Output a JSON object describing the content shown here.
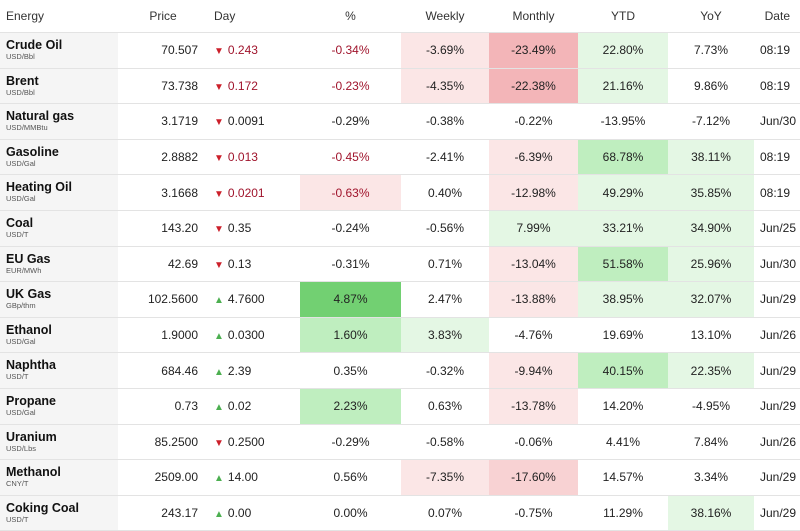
{
  "header": {
    "energy": "Energy",
    "price": "Price",
    "day": "Day",
    "pct": "%",
    "weekly": "Weekly",
    "monthly": "Monthly",
    "ytd": "YTD",
    "yoy": "YoY",
    "date": "Date"
  },
  "colors": {
    "red_strong": "#f3b5b8",
    "red_mid": "#f8d2d3",
    "red_light": "#fbe6e6",
    "green_strong": "#72d072",
    "green_mid": "#bfeebf",
    "green_light": "#e4f7e4",
    "down_text": "#a0142c",
    "down_arrow": "#cc1f2a",
    "up_arrow": "#4caf50"
  },
  "rows": [
    {
      "name": "Crude Oil",
      "unit": "USD/Bbl",
      "price": "70.507",
      "dir": "down",
      "day": "0.243",
      "pct": "-0.34%",
      "weekly": "-3.69%",
      "monthly": "-23.49%",
      "ytd": "22.80%",
      "yoy": "7.73%",
      "date": "08:19",
      "bg": {
        "pct": "",
        "weekly": "#fbe6e6",
        "monthly": "#f3b5b8",
        "ytd": "#e4f7e4",
        "yoy": ""
      },
      "red": {
        "day": true,
        "pct": true
      }
    },
    {
      "name": "Brent",
      "unit": "USD/Bbl",
      "price": "73.738",
      "dir": "down",
      "day": "0.172",
      "pct": "-0.23%",
      "weekly": "-4.35%",
      "monthly": "-22.38%",
      "ytd": "21.16%",
      "yoy": "9.86%",
      "date": "08:19",
      "bg": {
        "pct": "",
        "weekly": "#fbe6e6",
        "monthly": "#f3b5b8",
        "ytd": "#e4f7e4",
        "yoy": ""
      },
      "red": {
        "day": true,
        "pct": true
      }
    },
    {
      "name": "Natural gas",
      "unit": "USD/MMBtu",
      "price": "3.1719",
      "dir": "down",
      "day": "0.0091",
      "pct": "-0.29%",
      "weekly": "-0.38%",
      "monthly": "-0.22%",
      "ytd": "-13.95%",
      "yoy": "-7.12%",
      "date": "Jun/30",
      "bg": {
        "pct": "",
        "weekly": "",
        "monthly": "",
        "ytd": "",
        "yoy": ""
      },
      "red": {
        "day": false,
        "pct": false
      }
    },
    {
      "name": "Gasoline",
      "unit": "USD/Gal",
      "price": "2.8882",
      "dir": "down",
      "day": "0.013",
      "pct": "-0.45%",
      "weekly": "-2.41%",
      "monthly": "-6.39%",
      "ytd": "68.78%",
      "yoy": "38.11%",
      "date": "08:19",
      "bg": {
        "pct": "",
        "weekly": "",
        "monthly": "#fbe6e6",
        "ytd": "#bfeebf",
        "yoy": "#e4f7e4"
      },
      "red": {
        "day": true,
        "pct": true
      }
    },
    {
      "name": "Heating Oil",
      "unit": "USD/Gal",
      "price": "3.1668",
      "dir": "down",
      "day": "0.0201",
      "pct": "-0.63%",
      "weekly": "0.40%",
      "monthly": "-12.98%",
      "ytd": "49.29%",
      "yoy": "35.85%",
      "date": "08:19",
      "bg": {
        "pct": "#fbe6e6",
        "weekly": "",
        "monthly": "#fbe6e6",
        "ytd": "#e4f7e4",
        "yoy": "#e4f7e4"
      },
      "red": {
        "day": true,
        "pct": true
      }
    },
    {
      "name": "Coal",
      "unit": "USD/T",
      "price": "143.20",
      "dir": "down",
      "day": "0.35",
      "pct": "-0.24%",
      "weekly": "-0.56%",
      "monthly": "7.99%",
      "ytd": "33.21%",
      "yoy": "34.90%",
      "date": "Jun/25",
      "bg": {
        "pct": "",
        "weekly": "",
        "monthly": "#e4f7e4",
        "ytd": "#e4f7e4",
        "yoy": "#e4f7e4"
      },
      "red": {
        "day": false,
        "pct": false
      }
    },
    {
      "name": "EU Gas",
      "unit": "EUR/MWh",
      "price": "42.69",
      "dir": "down",
      "day": "0.13",
      "pct": "-0.31%",
      "weekly": "0.71%",
      "monthly": "-13.04%",
      "ytd": "51.58%",
      "yoy": "25.96%",
      "date": "Jun/30",
      "bg": {
        "pct": "",
        "weekly": "",
        "monthly": "#fbe6e6",
        "ytd": "#bfeebf",
        "yoy": "#e4f7e4"
      },
      "red": {
        "day": false,
        "pct": false
      }
    },
    {
      "name": "UK Gas",
      "unit": "GBp/thm",
      "price": "102.5600",
      "dir": "up",
      "day": "4.7600",
      "pct": "4.87%",
      "weekly": "2.47%",
      "monthly": "-13.88%",
      "ytd": "38.95%",
      "yoy": "32.07%",
      "date": "Jun/29",
      "bg": {
        "pct": "#72d072",
        "weekly": "",
        "monthly": "#fbe6e6",
        "ytd": "#e4f7e4",
        "yoy": "#e4f7e4"
      },
      "red": {
        "day": false,
        "pct": false
      }
    },
    {
      "name": "Ethanol",
      "unit": "USD/Gal",
      "price": "1.9000",
      "dir": "up",
      "day": "0.0300",
      "pct": "1.60%",
      "weekly": "3.83%",
      "monthly": "-4.76%",
      "ytd": "19.69%",
      "yoy": "13.10%",
      "date": "Jun/26",
      "bg": {
        "pct": "#bfeebf",
        "weekly": "#e4f7e4",
        "monthly": "",
        "ytd": "",
        "yoy": ""
      },
      "red": {
        "day": false,
        "pct": false
      }
    },
    {
      "name": "Naphtha",
      "unit": "USD/T",
      "price": "684.46",
      "dir": "up",
      "day": "2.39",
      "pct": "0.35%",
      "weekly": "-0.32%",
      "monthly": "-9.94%",
      "ytd": "40.15%",
      "yoy": "22.35%",
      "date": "Jun/29",
      "bg": {
        "pct": "",
        "weekly": "",
        "monthly": "#fbe6e6",
        "ytd": "#bfeebf",
        "yoy": "#e4f7e4"
      },
      "red": {
        "day": false,
        "pct": false
      }
    },
    {
      "name": "Propane",
      "unit": "USD/Gal",
      "price": "0.73",
      "dir": "up",
      "day": "0.02",
      "pct": "2.23%",
      "weekly": "0.63%",
      "monthly": "-13.78%",
      "ytd": "14.20%",
      "yoy": "-4.95%",
      "date": "Jun/29",
      "bg": {
        "pct": "#bfeebf",
        "weekly": "",
        "monthly": "#fbe6e6",
        "ytd": "",
        "yoy": ""
      },
      "red": {
        "day": false,
        "pct": false
      }
    },
    {
      "name": "Uranium",
      "unit": "USD/Lbs",
      "price": "85.2500",
      "dir": "down",
      "day": "0.2500",
      "pct": "-0.29%",
      "weekly": "-0.58%",
      "monthly": "-0.06%",
      "ytd": "4.41%",
      "yoy": "7.84%",
      "date": "Jun/26",
      "bg": {
        "pct": "",
        "weekly": "",
        "monthly": "",
        "ytd": "",
        "yoy": ""
      },
      "red": {
        "day": false,
        "pct": false
      }
    },
    {
      "name": "Methanol",
      "unit": "CNY/T",
      "price": "2509.00",
      "dir": "up",
      "day": "14.00",
      "pct": "0.56%",
      "weekly": "-7.35%",
      "monthly": "-17.60%",
      "ytd": "14.57%",
      "yoy": "3.34%",
      "date": "Jun/29",
      "bg": {
        "pct": "",
        "weekly": "#fbe6e6",
        "monthly": "#f8d2d3",
        "ytd": "",
        "yoy": ""
      },
      "red": {
        "day": false,
        "pct": false
      }
    },
    {
      "name": "Coking Coal",
      "unit": "USD/T",
      "price": "243.17",
      "dir": "up",
      "day": "0.00",
      "pct": "0.00%",
      "weekly": "0.07%",
      "monthly": "-0.75%",
      "ytd": "11.29%",
      "yoy": "38.16%",
      "date": "Jun/29",
      "bg": {
        "pct": "",
        "weekly": "",
        "monthly": "",
        "ytd": "",
        "yoy": "#e4f7e4"
      },
      "red": {
        "day": false,
        "pct": false
      }
    }
  ]
}
